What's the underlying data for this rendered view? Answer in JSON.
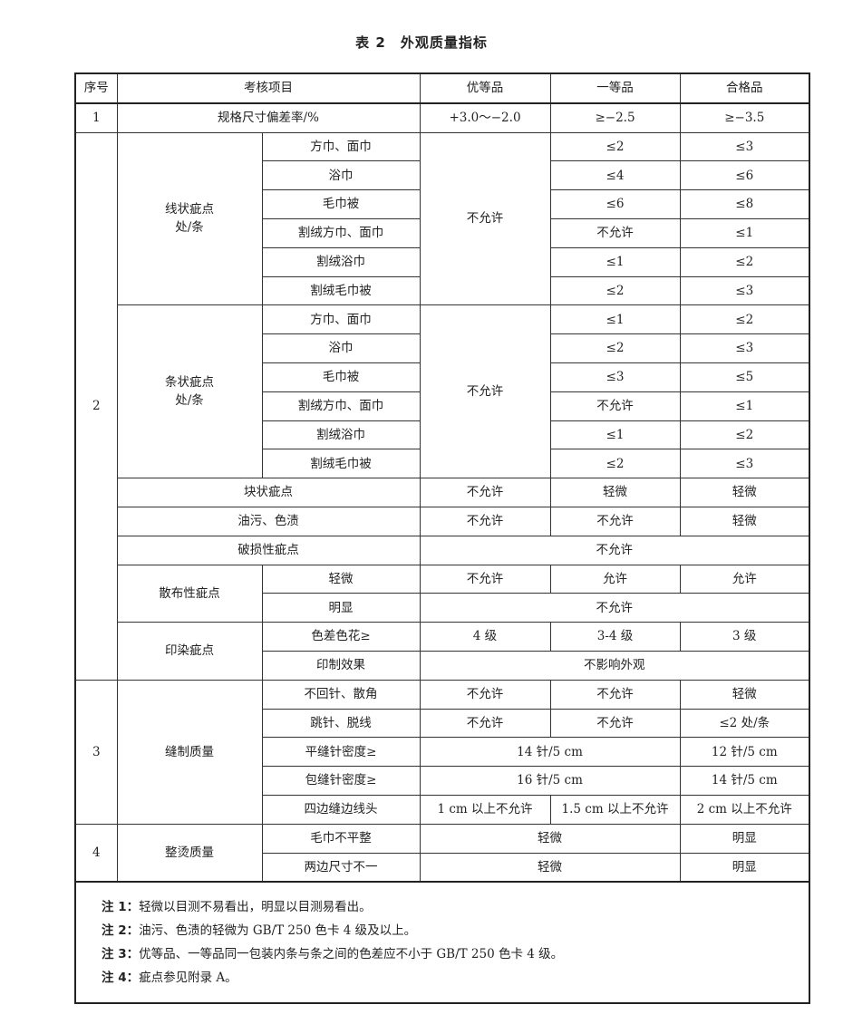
{
  "title": "表 2　外观质量指标",
  "header": [
    "序号",
    "考核项目",
    "优等品",
    "一等品",
    "合格品"
  ],
  "rows": [
    [
      "1",
      "规格尺寸偏差率/%",
      "+3.0～−2.0",
      "≥−2.5",
      "≥−3.5"
    ],
    [
      "2",
      "线状疵点\n处/条",
      "方巾、面巾",
      "不允许",
      "≤2",
      "≤3"
    ],
    [
      "浴巾",
      "≤4",
      "≤6"
    ],
    [
      "毛巾被",
      "≤6",
      "≤8"
    ],
    [
      "割绒方巾、面巾",
      "不允许",
      "≤1"
    ],
    [
      "割绒浴巾",
      "≤1",
      "≤2"
    ],
    [
      "割绒毛巾被",
      "≤2",
      "≤3"
    ],
    [
      "条状疵点\n处/条",
      "方巾、面巾",
      "不允许",
      "≤1",
      "≤2"
    ],
    [
      "浴巾",
      "≤2",
      "≤3"
    ],
    [
      "毛巾被",
      "≤3",
      "≤5"
    ],
    [
      "割绒方巾、面巾",
      "不允许",
      "≤1"
    ],
    [
      "割绒浴巾",
      "≤1",
      "≤2"
    ],
    [
      "割绒毛巾被",
      "≤2",
      "≤3"
    ],
    [
      "块状疵点",
      "不允许",
      "轻微",
      "轻微"
    ],
    [
      "油污、色渍",
      "不允许",
      "不允许",
      "轻微"
    ],
    [
      "破损性疵点",
      "不允许"
    ],
    [
      "散布性疵点",
      "轻微",
      "不允许",
      "允许",
      "允许"
    ],
    [
      "明显",
      "不允许"
    ],
    [
      "印染疵点",
      "色差色花≥",
      "4 级",
      "3-4 级",
      "3 级"
    ],
    [
      "印制效果",
      "不影响外观"
    ],
    [
      "3",
      "缝制质量",
      "不回针、散角",
      "不允许",
      "不允许",
      "轻微"
    ],
    [
      "跳针、脱线",
      "不允许",
      "不允许",
      "≤2 处/条"
    ],
    [
      "平缝针密度≥",
      "14 针/5 cm",
      "12 针/5 cm"
    ],
    [
      "包缝针密度≥",
      "16 针/5 cm",
      "14 针/5 cm"
    ],
    [
      "四边缝边线头",
      "1 cm 以上不允许",
      "1.5 cm 以上不允许",
      "2 cm 以上不允许"
    ],
    [
      "4",
      "整烫质量",
      "毛巾不平整",
      "轻微",
      "明显"
    ],
    [
      "两边尺寸不一",
      "轻微",
      "明显"
    ]
  ],
  "notes": [
    {
      "label": "注 1：",
      "text": "轻微以目测不易看出，明显以目测易看出。"
    },
    {
      "label": "注 2：",
      "text": "油污、色渍的轻微为 GB/T 250 色卡 4 级及以上。"
    },
    {
      "label": "注 3：",
      "text": "优等品、一等品同一包装内条与条之间的色差应不小于 GB/T 250 色卡 4 级。"
    },
    {
      "label": "注 4：",
      "text": "疵点参见附录 A。"
    }
  ]
}
